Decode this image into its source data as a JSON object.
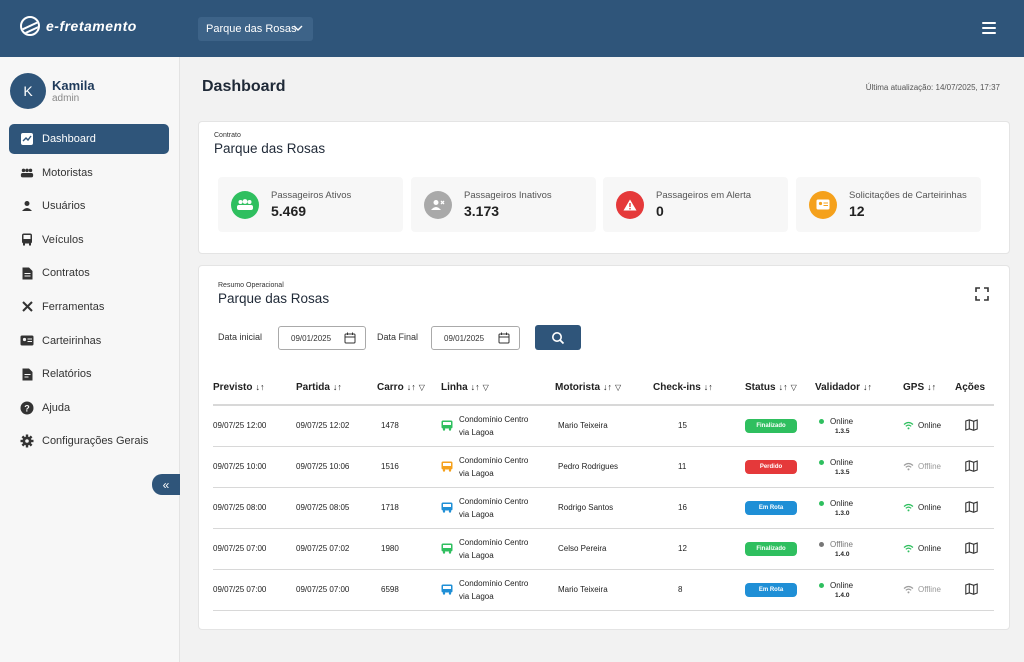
{
  "app": {
    "logo_text": "e-fretamento",
    "contract_selected": "Parque das Rosas"
  },
  "user": {
    "initial": "K",
    "name": "Kamila",
    "role": "admin"
  },
  "sidebar": {
    "items": [
      {
        "label": "Dashboard",
        "icon": "chart-icon",
        "active": true
      },
      {
        "label": "Motoristas",
        "icon": "group-icon"
      },
      {
        "label": "Usuários",
        "icon": "person-icon"
      },
      {
        "label": "Veículos",
        "icon": "bus-icon"
      },
      {
        "label": "Contratos",
        "icon": "document-icon"
      },
      {
        "label": "Ferramentas",
        "icon": "tools-icon"
      },
      {
        "label": "Carteirinhas",
        "icon": "id-card-icon"
      },
      {
        "label": "Relatórios",
        "icon": "report-icon"
      },
      {
        "label": "Ajuda",
        "icon": "help-icon"
      },
      {
        "label": "Configurações Gerais",
        "icon": "gear-icon"
      }
    ],
    "collapse_symbol": "«"
  },
  "header": {
    "title": "Dashboard",
    "last_update": "Última atualização: 14/07/2025, 17:37"
  },
  "contract_card": {
    "label": "Contrato",
    "name": "Parque das Rosas",
    "stats": [
      {
        "label": "Passageiros Ativos",
        "value": "5.469",
        "color": "#2fbf5f",
        "icon": "people-icon"
      },
      {
        "label": "Passageiros Inativos",
        "value": "3.173",
        "color": "#a9a9a9",
        "icon": "person-remove-icon"
      },
      {
        "label": "Passageiros em Alerta",
        "value": "0",
        "color": "#e5393a",
        "icon": "alert-icon"
      },
      {
        "label": "Solicitações de Carteirinhas",
        "value": "12",
        "color": "#f5a11c",
        "icon": "id-card-icon"
      }
    ]
  },
  "operational": {
    "label": "Resumo Operacional",
    "name": "Parque das Rosas",
    "filters": {
      "start_label": "Data inicial",
      "start_value": "09/01/2025",
      "end_label": "Data Final",
      "end_value": "09/01/2025"
    },
    "columns": [
      "Previsto",
      "Partida",
      "Carro",
      "Linha",
      "Motorista",
      "Check-ins",
      "Status",
      "Validador",
      "GPS",
      "Ações"
    ],
    "rows": [
      {
        "previsto": "09/07/25 12:00",
        "partida": "09/07/25 12:02",
        "carro": "1478",
        "linha1": "Condomínio Centro",
        "linha2": "via Lagoa",
        "bus_color": "#2fbf5f",
        "motorista": "Mario Teixeira",
        "checkins": "15",
        "status": "Finalizado",
        "status_color": "#2fbf5f",
        "validador": "Online",
        "validador_color": "#2fbf5f",
        "versao": "1.3.5",
        "gps": "Online",
        "gps_color": "#2fbf5f"
      },
      {
        "previsto": "09/07/25 10:00",
        "partida": "09/07/25 10:06",
        "carro": "1516",
        "linha1": "Condomínio Centro",
        "linha2": "via Lagoa",
        "bus_color": "#f5a11c",
        "motorista": "Pedro Rodrigues",
        "checkins": "11",
        "status": "Perdido",
        "status_color": "#e5393a",
        "validador": "Online",
        "validador_color": "#2fbf5f",
        "versao": "1.3.5",
        "gps": "Offline",
        "gps_color": "#9e9e9e"
      },
      {
        "previsto": "09/07/25 08:00",
        "partida": "09/07/25 08:05",
        "carro": "1718",
        "linha1": "Condomínio Centro",
        "linha2": "via Lagoa",
        "bus_color": "#1f8fd6",
        "motorista": "Rodrigo Santos",
        "checkins": "16",
        "status": "Em Rota",
        "status_color": "#1f8fd6",
        "validador": "Online",
        "validador_color": "#2fbf5f",
        "versao": "1.3.0",
        "gps": "Online",
        "gps_color": "#2fbf5f"
      },
      {
        "previsto": "09/07/25 07:00",
        "partida": "09/07/25 07:02",
        "carro": "1980",
        "linha1": "Condomínio Centro",
        "linha2": "via Lagoa",
        "bus_color": "#2fbf5f",
        "motorista": "Celso Pereira",
        "checkins": "12",
        "status": "Finalizado",
        "status_color": "#2fbf5f",
        "validador": "Offline",
        "validador_color": "#777777",
        "versao": "1.4.0",
        "gps": "Online",
        "gps_color": "#2fbf5f"
      },
      {
        "previsto": "09/07/25 07:00",
        "partida": "09/07/25 07:00",
        "carro": "6598",
        "linha1": "Condomínio Centro",
        "linha2": "via Lagoa",
        "bus_color": "#1f8fd6",
        "motorista": "Mario Teixeira",
        "checkins": "8",
        "status": "Em Rota",
        "status_color": "#1f8fd6",
        "validador": "Online",
        "validador_color": "#2fbf5f",
        "versao": "1.4.0",
        "gps": "Offline",
        "gps_color": "#9e9e9e"
      }
    ]
  }
}
